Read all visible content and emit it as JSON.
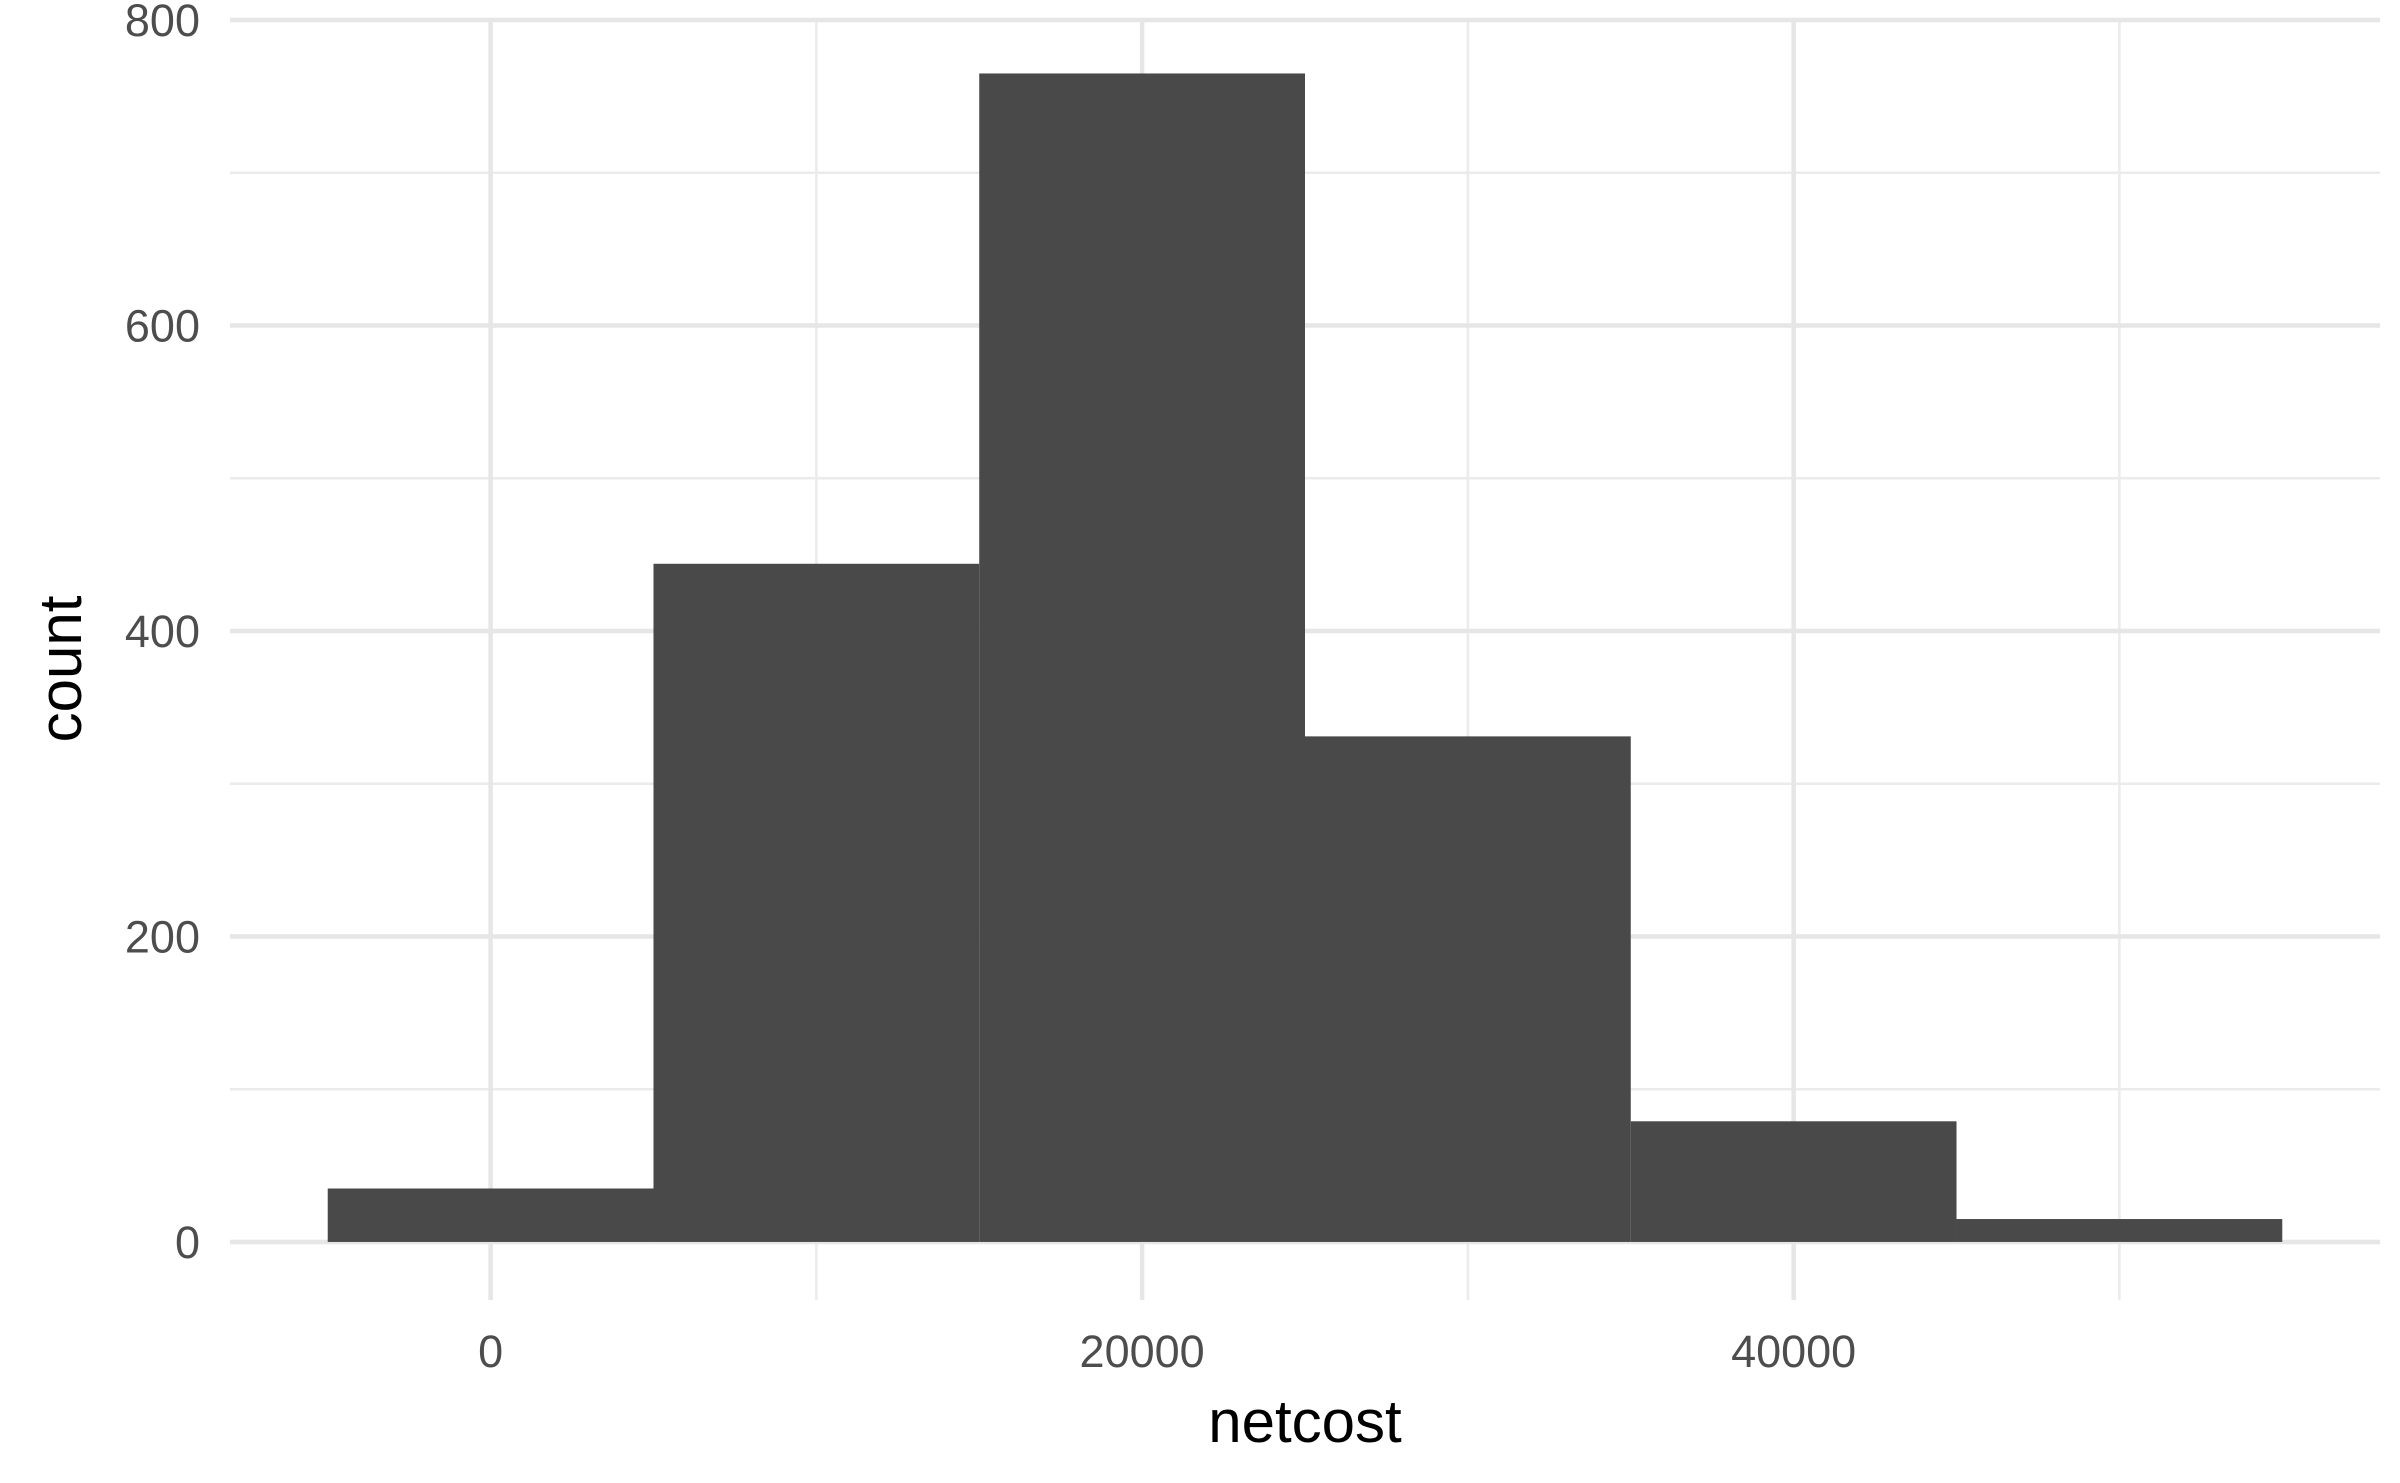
{
  "chart_data": {
    "type": "histogram",
    "xlabel": "netcost",
    "ylabel": "count",
    "xlim": [
      -8000,
      58000
    ],
    "ylim": [
      -38,
      800
    ],
    "x_ticks": [
      0,
      20000,
      40000
    ],
    "x_tick_labels": [
      "0",
      "20000",
      "40000"
    ],
    "y_ticks": [
      0,
      200,
      400,
      600,
      800
    ],
    "y_tick_labels": [
      "0",
      "200",
      "400",
      "600",
      "800"
    ],
    "x_minor_ticks": [
      10000,
      30000,
      50000
    ],
    "y_minor_ticks": [
      100,
      300,
      500,
      700
    ],
    "bin_width": 10000,
    "bins": [
      {
        "x_start": -5000,
        "x_end": 5000,
        "count": 35
      },
      {
        "x_start": 5000,
        "x_end": 15000,
        "count": 444
      },
      {
        "x_start": 15000,
        "x_end": 25000,
        "count": 765
      },
      {
        "x_start": 25000,
        "x_end": 35000,
        "count": 331
      },
      {
        "x_start": 35000,
        "x_end": 45000,
        "count": 79
      },
      {
        "x_start": 45000,
        "x_end": 55000,
        "count": 15
      }
    ],
    "bar_color": "#494949",
    "grid": true,
    "legend": "none"
  }
}
